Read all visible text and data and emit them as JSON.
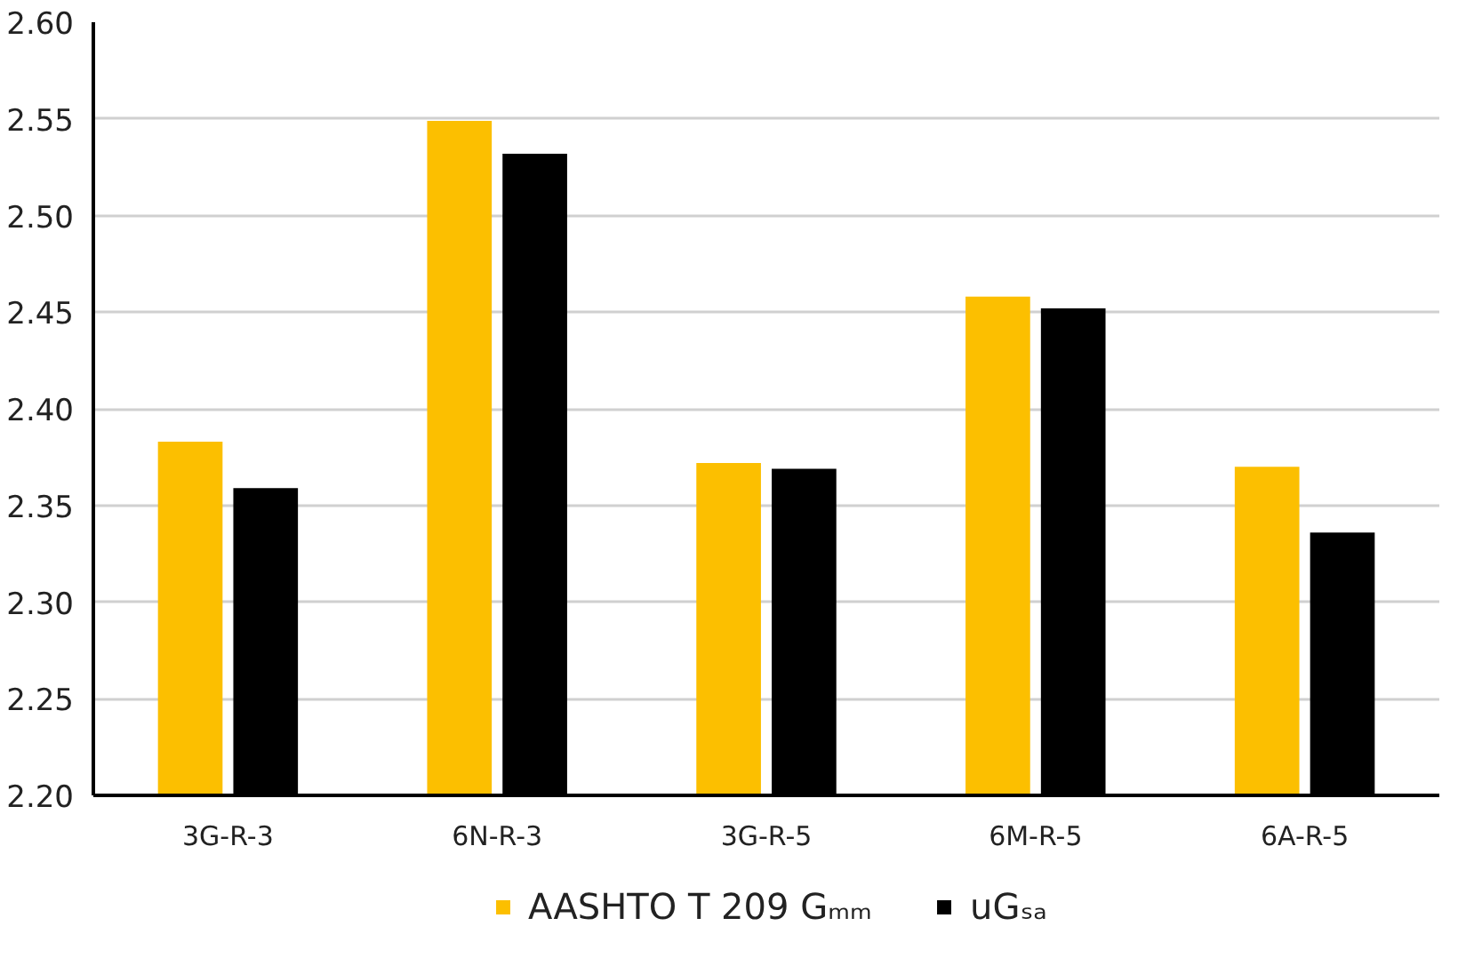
{
  "chart_data": {
    "type": "bar",
    "categories": [
      "3G-R-3",
      "6N-R-3",
      "3G-R-5",
      "6M-R-5",
      "6A-R-5"
    ],
    "series": [
      {
        "name": "AASHTO T 209 Gₘₘ",
        "color": "#fcbf00",
        "values": [
          2.383,
          2.549,
          2.372,
          2.458,
          2.37
        ]
      },
      {
        "name": "uGₛₐ",
        "color": "#000000",
        "values": [
          2.359,
          2.532,
          2.369,
          2.452,
          2.336
        ]
      }
    ],
    "ylim": [
      2.2,
      2.6
    ],
    "yticks": [
      {
        "value": 2.2,
        "label": "2.20"
      },
      {
        "value": 2.25,
        "label": "2.25"
      },
      {
        "value": 2.3,
        "label": "2.30"
      },
      {
        "value": 2.35,
        "label": "2.35"
      },
      {
        "value": 2.4,
        "label": "2.40"
      },
      {
        "value": 2.45,
        "label": "2.45"
      },
      {
        "value": 2.5,
        "label": "2.50"
      },
      {
        "value": 2.55,
        "label": "2.55"
      },
      {
        "value": 2.6,
        "label": "2.60"
      }
    ],
    "grid": "y",
    "legend": "bottom"
  }
}
